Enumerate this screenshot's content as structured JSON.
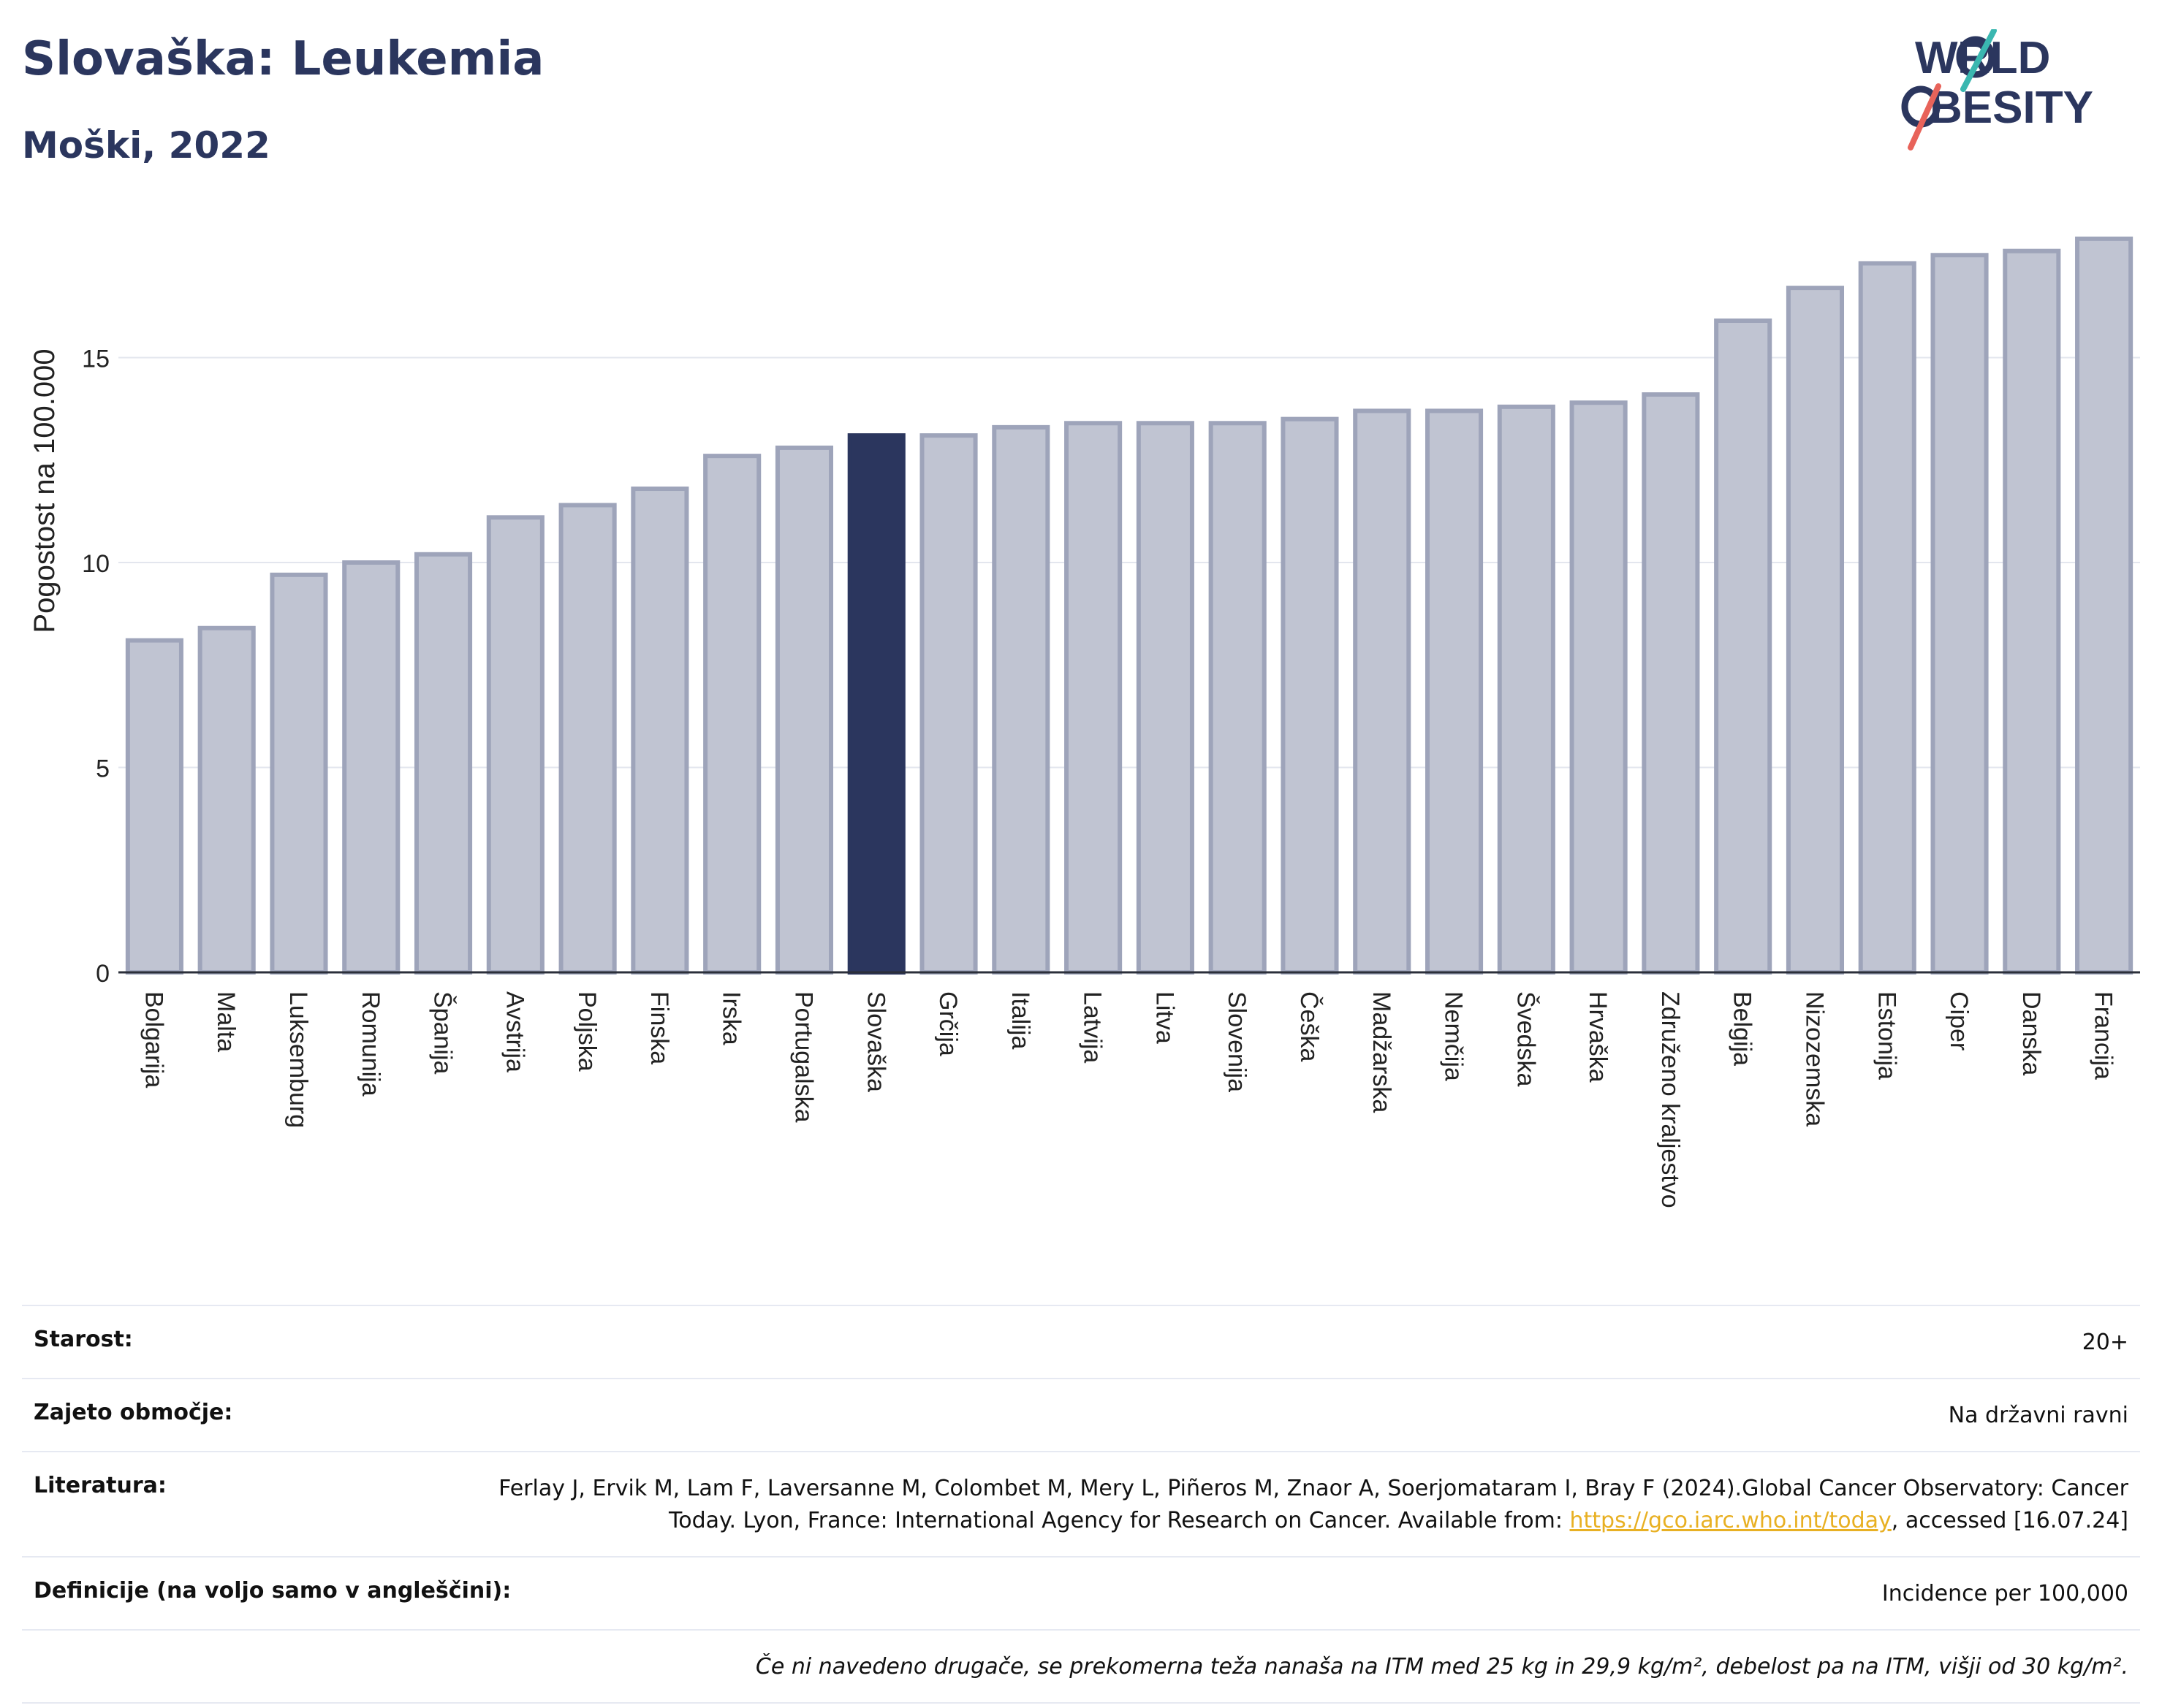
{
  "header": {
    "title": "Slovaška: Leukemia",
    "subtitle": "Moški, 2022",
    "logo_text": "WORLD OBESITY"
  },
  "chart_data": {
    "type": "bar",
    "title": "Slovaška: Leukemia",
    "subtitle": "Moški, 2022",
    "ylabel": "Pogostost na 100.000",
    "xlabel": "",
    "ylim": [
      0,
      18
    ],
    "yticks": [
      0,
      5,
      10,
      15
    ],
    "grid": true,
    "highlight": "Slovaška",
    "colors": {
      "bar": "#c0c4d2",
      "bar_edge": "#9ea4ba",
      "highlight": "#2b365e"
    },
    "categories": [
      "Bolgarija",
      "Malta",
      "Luksemburg",
      "Romunija",
      "Španija",
      "Avstrija",
      "Poljska",
      "Finska",
      "Irska",
      "Portugalska",
      "Slovaška",
      "Grčija",
      "Italija",
      "Latvija",
      "Litva",
      "Slovenija",
      "Češka",
      "Madžarska",
      "Nemčija",
      "Švedska",
      "Hrvaška",
      "Združeno kraljestvo",
      "Belgija",
      "Nizozemska",
      "Estonija",
      "Ciper",
      "Danska",
      "Francija"
    ],
    "values": [
      8.1,
      8.4,
      9.7,
      10.0,
      10.2,
      11.1,
      11.4,
      11.8,
      12.6,
      12.8,
      13.1,
      13.1,
      13.3,
      13.4,
      13.4,
      13.4,
      13.5,
      13.7,
      13.7,
      13.8,
      13.9,
      14.1,
      15.9,
      16.7,
      17.3,
      17.5,
      17.6,
      17.9
    ]
  },
  "meta": {
    "age_label": "Starost:",
    "age_value": "20+",
    "coverage_label": "Zajeto območje:",
    "coverage_value": "Na državni ravni",
    "ref_label": "Literatura:",
    "ref_text": "Ferlay J, Ervik M, Lam F, Laversanne M, Colombet M, Mery L, Piñeros M, Znaor A, Soerjomataram I, Bray F (2024).Global Cancer Observatory: Cancer Today. Lyon, France: International Agency for Research on Cancer. Available from: ",
    "ref_link": "https://gco.iarc.who.int/today",
    "ref_tail": ", accessed [16.07.24]",
    "def_label": "Definicije (na voljo samo v angleščini):",
    "def_value": "Incidence per 100,000",
    "note": "Če ni navedeno drugače, se prekomerna teža nanaša na ITM med 25 kg in 29,9 kg/m², debelost pa na ITM, višji od 30 kg/m²."
  }
}
